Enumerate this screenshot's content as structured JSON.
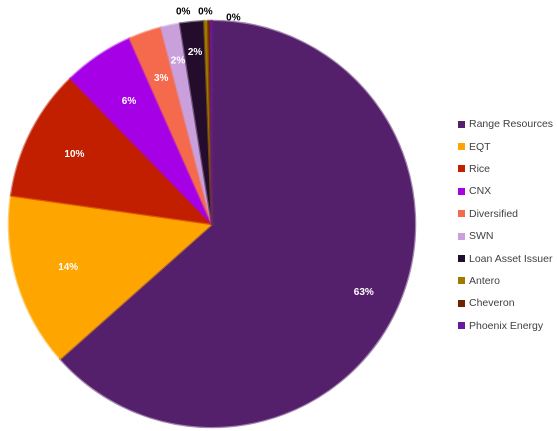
{
  "chart_data": {
    "type": "pie",
    "title": "",
    "categories": [
      "Range Resources",
      "EQT",
      "Rice",
      "CNX",
      "Diversified",
      "SWN",
      "Loan Asset Issuer",
      "Antero",
      "Cheveron",
      "Phoenix Energy"
    ],
    "values": [
      63.0,
      13.7,
      10.4,
      5.6,
      2.6,
      1.5,
      1.9,
      0.3,
      0.2,
      0.1
    ],
    "labels": [
      "63%",
      "14%",
      "10%",
      "6%",
      "3%",
      "2%",
      "2%",
      "0%",
      "0%",
      "0%"
    ],
    "colors": [
      "#55206B",
      "#FFA500",
      "#C21F00",
      "#A500E6",
      "#F5694D",
      "#C9A0DC",
      "#240C2D",
      "#9E7A00",
      "#6B2300",
      "#6619A1"
    ],
    "label_colors": [
      "#ffffff",
      "#ffffff",
      "#ffffff",
      "#ffffff",
      "#ffffff",
      "#ffffff",
      "#ffffff",
      "#000000",
      "#000000",
      "#000000"
    ],
    "start_angle_deg": 0,
    "direction": "clockwise",
    "legend_position": "right"
  }
}
